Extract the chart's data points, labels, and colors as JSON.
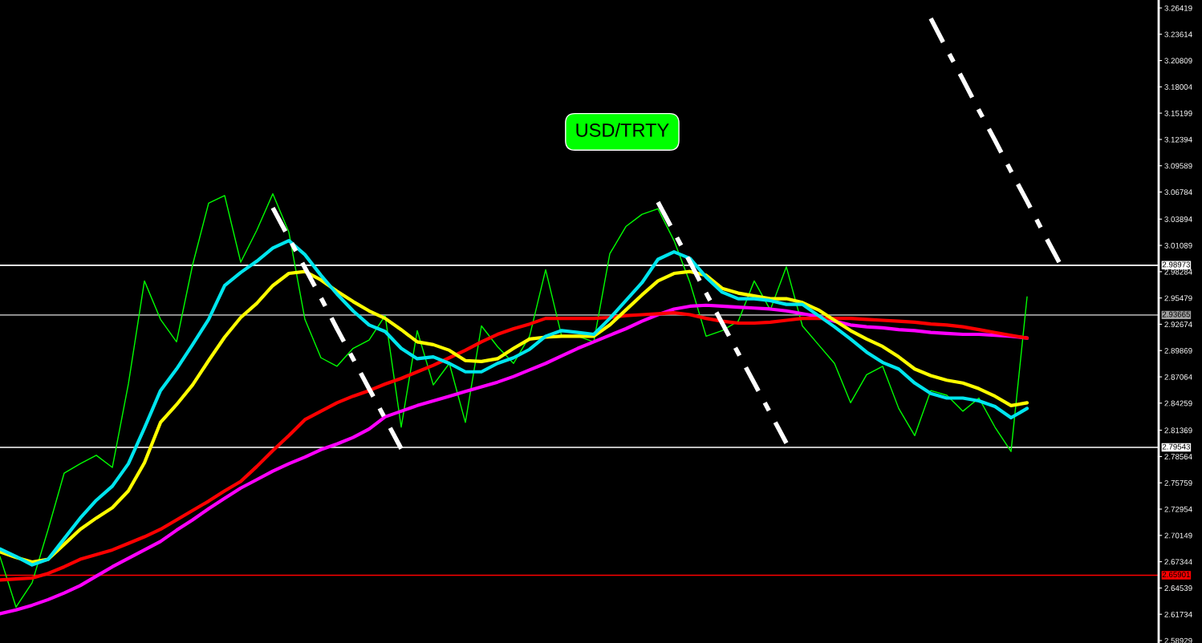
{
  "chart_data": {
    "type": "line",
    "title": "USD/TRTY",
    "categories": [
      null,
      null,
      null,
      null,
      null,
      null,
      null,
      null,
      null,
      null,
      null,
      null,
      null,
      null,
      null,
      null,
      null,
      null,
      null,
      null,
      null,
      null,
      null,
      null,
      null,
      null,
      null,
      null,
      null,
      null,
      null,
      null,
      null,
      null,
      null,
      null,
      null,
      null,
      null,
      null,
      null,
      null,
      null,
      null,
      null,
      null,
      null,
      null,
      null,
      null,
      null,
      null,
      null,
      null,
      null,
      null,
      null,
      null,
      null,
      null,
      null,
      null,
      null,
      null,
      null,
      null,
      null
    ],
    "ylim": [
      2.5867,
      3.2727
    ],
    "tick_labels": "y",
    "grid": false,
    "marker": "none",
    "yticks": [
      3.26419,
      3.23614,
      3.20809,
      3.18004,
      3.15199,
      3.12394,
      3.09589,
      3.06784,
      3.03894,
      3.01089,
      2.98284,
      2.95479,
      2.92674,
      2.89869,
      2.87064,
      2.84259,
      2.81369,
      2.78564,
      2.75759,
      2.72954,
      2.70149,
      2.67344,
      2.64539,
      2.61734,
      2.58929
    ],
    "ref_lines": [
      {
        "axis": "y",
        "value": 2.98973,
        "label": "2.98973",
        "color": "#ffffff"
      },
      {
        "axis": "y",
        "value": 2.93665,
        "label": "2.93665",
        "color": "#a0a0a0"
      },
      {
        "axis": "y",
        "value": 2.79543,
        "label": "2.79543",
        "color": "#ffffff"
      },
      {
        "axis": "y",
        "value": 2.65901,
        "label": "2.65901",
        "color": "#ff0000"
      }
    ],
    "series": [
      {
        "color": "#00ff00",
        "values": [
          2.679,
          2.625,
          2.651,
          2.708,
          2.768,
          2.778,
          2.787,
          2.774,
          2.863,
          2.973,
          2.932,
          2.908,
          2.99,
          3.056,
          3.064,
          2.993,
          3.027,
          3.066,
          3.025,
          2.932,
          2.891,
          2.882,
          2.901,
          2.91,
          2.936,
          2.817,
          2.92,
          2.862,
          2.885,
          2.822,
          2.925,
          2.903,
          2.885,
          2.914,
          2.985,
          2.914,
          2.914,
          2.908,
          3.002,
          3.031,
          3.044,
          3.05,
          3.016,
          2.971,
          2.914,
          2.92,
          2.93,
          2.973,
          2.942,
          2.988,
          2.925,
          2.905,
          2.885,
          2.843,
          2.873,
          2.882,
          2.837,
          2.808,
          2.856,
          2.851,
          2.834,
          2.848,
          2.817,
          2.791,
          2.956,
          null,
          null
        ]
      },
      {
        "color": "#ff00ff",
        "values": [
          2.618,
          2.622,
          2.627,
          2.633,
          2.64,
          2.648,
          2.658,
          2.668,
          2.677,
          2.686,
          2.695,
          2.707,
          2.718,
          2.73,
          2.741,
          2.752,
          2.761,
          2.77,
          2.778,
          2.785,
          2.793,
          2.799,
          2.806,
          2.815,
          2.828,
          2.834,
          2.84,
          2.845,
          2.85,
          2.855,
          2.86,
          2.865,
          2.871,
          2.878,
          2.885,
          2.893,
          2.901,
          2.908,
          2.915,
          2.922,
          2.93,
          2.937,
          2.943,
          2.946,
          2.947,
          2.946,
          2.945,
          2.944,
          2.943,
          2.941,
          2.938,
          2.935,
          2.93,
          2.926,
          2.924,
          2.923,
          2.921,
          2.92,
          2.918,
          2.917,
          2.916,
          2.916,
          2.915,
          2.914,
          2.912,
          null,
          null
        ]
      },
      {
        "color": "#ff0000",
        "values": [
          2.654,
          2.655,
          2.656,
          2.661,
          2.668,
          2.676,
          2.681,
          2.686,
          2.693,
          2.7,
          2.708,
          2.718,
          2.728,
          2.738,
          2.749,
          2.759,
          2.775,
          2.792,
          2.808,
          2.825,
          2.834,
          2.843,
          2.85,
          2.856,
          2.863,
          2.869,
          2.876,
          2.883,
          2.891,
          2.899,
          2.908,
          2.916,
          2.922,
          2.927,
          2.933,
          2.933,
          2.933,
          2.933,
          2.934,
          2.936,
          2.937,
          2.938,
          2.939,
          2.937,
          2.933,
          2.93,
          2.928,
          2.928,
          2.929,
          2.931,
          2.933,
          2.933,
          2.933,
          2.933,
          2.932,
          2.931,
          2.93,
          2.929,
          2.927,
          2.926,
          2.924,
          2.921,
          2.918,
          2.915,
          2.912,
          null,
          null
        ]
      },
      {
        "color": "#ffff00",
        "values": [
          2.684,
          2.678,
          2.673,
          2.676,
          2.692,
          2.708,
          2.72,
          2.731,
          2.749,
          2.779,
          2.822,
          2.841,
          2.862,
          2.888,
          2.913,
          2.934,
          2.949,
          2.968,
          2.981,
          2.983,
          2.974,
          2.962,
          2.951,
          2.941,
          2.933,
          2.921,
          2.908,
          2.905,
          2.899,
          2.888,
          2.887,
          2.89,
          2.901,
          2.911,
          2.913,
          2.914,
          2.914,
          2.914,
          2.926,
          2.942,
          2.958,
          2.973,
          2.981,
          2.983,
          2.979,
          2.965,
          2.96,
          2.957,
          2.954,
          2.954,
          2.95,
          2.942,
          2.931,
          2.92,
          2.911,
          2.903,
          2.892,
          2.879,
          2.872,
          2.867,
          2.864,
          2.858,
          2.85,
          2.84,
          2.843,
          null,
          null
        ]
      },
      {
        "color": "#00e5ee",
        "values": [
          2.687,
          2.679,
          2.67,
          2.676,
          2.698,
          2.72,
          2.739,
          2.754,
          2.778,
          2.816,
          2.856,
          2.879,
          2.905,
          2.932,
          2.968,
          2.982,
          2.994,
          3.008,
          3.016,
          3.001,
          2.979,
          2.959,
          2.941,
          2.926,
          2.919,
          2.901,
          2.89,
          2.892,
          2.885,
          2.876,
          2.876,
          2.885,
          2.891,
          2.9,
          2.914,
          2.92,
          2.918,
          2.916,
          2.933,
          2.952,
          2.971,
          2.996,
          3.004,
          2.997,
          2.977,
          2.961,
          2.954,
          2.954,
          2.952,
          2.948,
          2.948,
          2.936,
          2.924,
          2.911,
          2.897,
          2.886,
          2.879,
          2.864,
          2.853,
          2.848,
          2.848,
          2.845,
          2.839,
          2.827,
          2.837,
          null,
          null
        ]
      },
      {
        "color": "#ffffff",
        "line_style": "dashed",
        "values": [
          null,
          null,
          null,
          null,
          null,
          null,
          null,
          null,
          null,
          null,
          null,
          null,
          null,
          null,
          null,
          null,
          null,
          3.051,
          3.019,
          2.987,
          2.955,
          2.922,
          2.89,
          2.858,
          2.826,
          2.794,
          null,
          null,
          null,
          null,
          null,
          null,
          null,
          null,
          null,
          null,
          null,
          null,
          null,
          null,
          null,
          null,
          null,
          null,
          null,
          null,
          null,
          null,
          null,
          null,
          null,
          null,
          null,
          null,
          null,
          null,
          null,
          null,
          null,
          null,
          null,
          null,
          null,
          null,
          null,
          null,
          null
        ]
      },
      {
        "color": "#ffffff",
        "line_style": "dashed",
        "values": [
          null,
          null,
          null,
          null,
          null,
          null,
          null,
          null,
          null,
          null,
          null,
          null,
          null,
          null,
          null,
          null,
          null,
          null,
          null,
          null,
          null,
          null,
          null,
          null,
          null,
          null,
          null,
          null,
          null,
          null,
          null,
          null,
          null,
          null,
          null,
          null,
          null,
          null,
          null,
          null,
          null,
          3.057,
          3.025,
          2.993,
          2.96,
          2.928,
          2.896,
          2.864,
          2.832,
          2.8,
          null,
          null,
          null,
          null,
          null,
          null,
          null,
          null,
          null,
          null,
          null,
          null,
          null,
          null,
          null,
          null,
          null
        ]
      },
      {
        "color": "#ffffff",
        "line_style": "dashed",
        "values": [
          null,
          null,
          null,
          null,
          null,
          null,
          null,
          null,
          null,
          null,
          null,
          null,
          null,
          null,
          null,
          null,
          null,
          null,
          null,
          null,
          null,
          null,
          null,
          null,
          null,
          null,
          null,
          null,
          null,
          null,
          null,
          null,
          null,
          null,
          null,
          null,
          null,
          null,
          null,
          null,
          null,
          null,
          null,
          null,
          null,
          null,
          null,
          null,
          null,
          null,
          null,
          null,
          null,
          null,
          null,
          null,
          null,
          null,
          3.253,
          3.22,
          3.188,
          3.155,
          3.123,
          3.09,
          3.058,
          3.025,
          2.993
        ]
      }
    ]
  }
}
